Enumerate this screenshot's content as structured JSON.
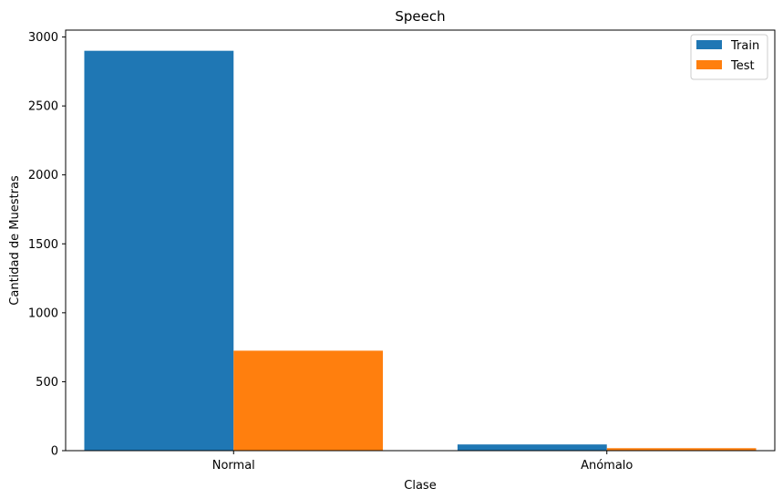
{
  "chart_data": {
    "type": "bar",
    "title": "Speech",
    "xlabel": "Clase",
    "ylabel": "Cantidad de Muestras",
    "categories": [
      "Normal",
      "Anómalo"
    ],
    "series": [
      {
        "name": "Train",
        "values": [
          2900,
          45
        ],
        "color": "#1f77b4"
      },
      {
        "name": "Test",
        "values": [
          725,
          18
        ],
        "color": "#ff7f0e"
      }
    ],
    "ylim": [
      0,
      3050
    ],
    "yticks": [
      0,
      500,
      1000,
      1500,
      2000,
      2500,
      3000
    ],
    "grid": false,
    "legend_position": "top-right"
  }
}
